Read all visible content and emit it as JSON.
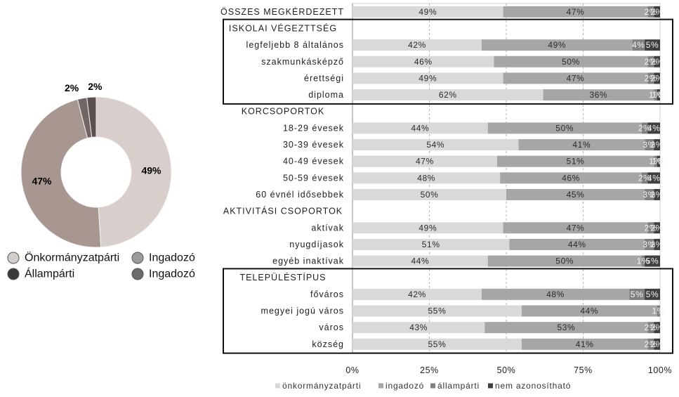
{
  "chart_data": [
    {
      "type": "pie",
      "donut": true,
      "slices": [
        {
          "label": "Önkormányzatpárti",
          "value": 49,
          "color": "#d8cecb",
          "legend_color": "#d2cdcb"
        },
        {
          "label": "Ingadozó",
          "value": 47,
          "color": "#a89791",
          "legend_color": "#9b9b9b"
        },
        {
          "label": "Állampárti",
          "value": 2,
          "color": "#716665",
          "legend_color": "#3b3b3b"
        },
        {
          "label": "Ingadozó",
          "value": 2,
          "color": "#5a5150",
          "legend_color": "#6b6b6b"
        }
      ],
      "data_labels": [
        "49%",
        "47%",
        "2%",
        "2%"
      ],
      "legend": "bottom"
    },
    {
      "type": "bar",
      "orientation": "horizontal",
      "stacked": true,
      "categories": [
        "ÖSSZES MEGKÉRDEZETT",
        "ISKOLAI VÉGEZTTSÉG",
        "legfeljebb 8 általános",
        "szakmunkásképző",
        "érettségi",
        "diploma",
        "KORCSOPORTOK",
        "18-29 évesek",
        "30-39 évesek",
        "40-49 évesek",
        "50-59 évesek",
        "60 évnél idősebbek",
        "AKTIVITÁSI CSOPORTOK",
        "aktívak",
        "nyugdíjasok",
        "egyéb inaktívak",
        "TELEPÜLÉSTÍPUS",
        "főváros",
        "megyei jogú város",
        "város",
        "község"
      ],
      "series": [
        {
          "name": "önkormányzatpárti",
          "color": "#d9d9d9",
          "values": [
            49,
            null,
            42,
            46,
            49,
            62,
            null,
            44,
            54,
            47,
            48,
            50,
            null,
            49,
            51,
            44,
            null,
            42,
            55,
            43,
            55
          ]
        },
        {
          "name": "ingadozó",
          "color": "#a6a6a6",
          "values": [
            47,
            null,
            49,
            50,
            47,
            36,
            null,
            50,
            41,
            51,
            46,
            45,
            null,
            47,
            44,
            50,
            null,
            48,
            44,
            53,
            41
          ]
        },
        {
          "name": "állampárti",
          "color": "#808080",
          "values": [
            2,
            null,
            4,
            2,
            2,
            1,
            null,
            2,
            3,
            1,
            2,
            3,
            null,
            2,
            3,
            1,
            null,
            5,
            1,
            2,
            2
          ]
        },
        {
          "name": "nem azonosítható",
          "color": "#3f3f3f",
          "values": [
            2,
            null,
            5,
            2,
            2,
            1,
            null,
            4,
            2,
            1,
            4,
            2,
            null,
            2,
            2,
            5,
            null,
            5,
            0,
            2,
            2
          ]
        }
      ],
      "xticks": [
        "0%",
        "25%",
        "50%",
        "75%",
        "100%"
      ],
      "xlim": [
        0,
        100
      ],
      "grid": true,
      "legend": "bottom"
    }
  ]
}
